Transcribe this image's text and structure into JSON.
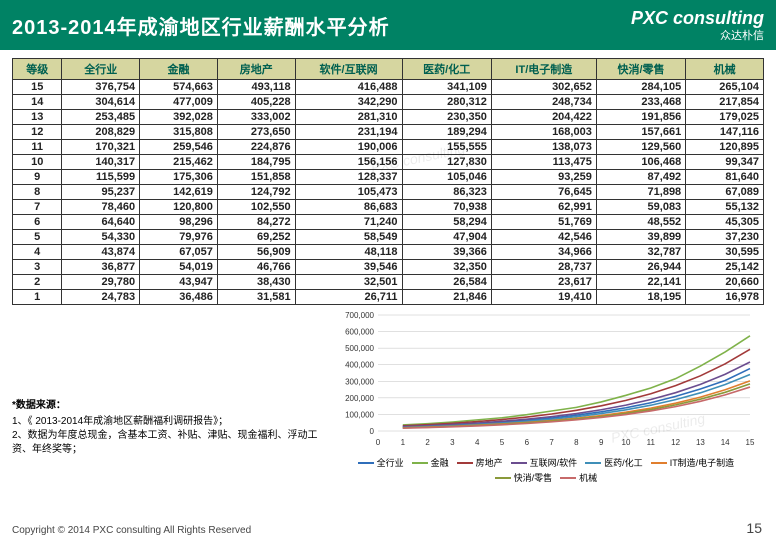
{
  "header": {
    "title": "2013-2014年成渝地区行业薪酬水平分析",
    "logo_main": "PXC consulting",
    "logo_sub": "众达朴信"
  },
  "table": {
    "columns": [
      "等级",
      "全行业",
      "金融",
      "房地产",
      "软件/互联网",
      "医药/化工",
      "IT/电子制造",
      "快消/零售",
      "机械"
    ],
    "rows": [
      [
        "15",
        "376,754",
        "574,663",
        "493,118",
        "416,488",
        "341,109",
        "302,652",
        "284,105",
        "265,104"
      ],
      [
        "14",
        "304,614",
        "477,009",
        "405,228",
        "342,290",
        "280,312",
        "248,734",
        "233,468",
        "217,854"
      ],
      [
        "13",
        "253,485",
        "392,028",
        "333,002",
        "281,310",
        "230,350",
        "204,422",
        "191,856",
        "179,025"
      ],
      [
        "12",
        "208,829",
        "315,808",
        "273,650",
        "231,194",
        "189,294",
        "168,003",
        "157,661",
        "147,116"
      ],
      [
        "11",
        "170,321",
        "259,546",
        "224,876",
        "190,006",
        "155,555",
        "138,073",
        "129,560",
        "120,895"
      ],
      [
        "10",
        "140,317",
        "215,462",
        "184,795",
        "156,156",
        "127,830",
        "113,475",
        "106,468",
        "99,347"
      ],
      [
        "9",
        "115,599",
        "175,306",
        "151,858",
        "128,337",
        "105,046",
        "93,259",
        "87,492",
        "81,640"
      ],
      [
        "8",
        "95,237",
        "142,619",
        "124,792",
        "105,473",
        "86,323",
        "76,645",
        "71,898",
        "67,089"
      ],
      [
        "7",
        "78,460",
        "120,800",
        "102,550",
        "86,683",
        "70,938",
        "62,991",
        "59,083",
        "55,132"
      ],
      [
        "6",
        "64,640",
        "98,296",
        "84,272",
        "71,240",
        "58,294",
        "51,769",
        "48,552",
        "45,305"
      ],
      [
        "5",
        "54,330",
        "79,976",
        "69,252",
        "58,549",
        "47,904",
        "42,546",
        "39,899",
        "37,230"
      ],
      [
        "4",
        "43,874",
        "67,057",
        "56,909",
        "48,118",
        "39,366",
        "34,966",
        "32,787",
        "30,595"
      ],
      [
        "3",
        "36,877",
        "54,019",
        "46,766",
        "39,546",
        "32,350",
        "28,737",
        "26,944",
        "25,142"
      ],
      [
        "2",
        "29,780",
        "43,947",
        "38,430",
        "32,501",
        "26,584",
        "23,617",
        "22,141",
        "20,660"
      ],
      [
        "1",
        "24,783",
        "36,486",
        "31,581",
        "26,711",
        "21,846",
        "19,410",
        "18,195",
        "16,978"
      ]
    ]
  },
  "chart": {
    "type": "line",
    "ylim": [
      0,
      700000
    ],
    "ytick_step": 100000,
    "x_categories": [
      "0",
      "1",
      "2",
      "3",
      "4",
      "5",
      "6",
      "7",
      "8",
      "9",
      "10",
      "11",
      "12",
      "13",
      "14",
      "15"
    ],
    "grid_color": "#c0c0c0",
    "background_color": "#ffffff",
    "series": [
      {
        "name": "全行业",
        "color": "#2f6eba",
        "values": [
          24783,
          29780,
          36877,
          43874,
          54330,
          64640,
          78460,
          95237,
          115599,
          140317,
          170321,
          208829,
          253485,
          304614,
          376754
        ]
      },
      {
        "name": "金融",
        "color": "#7fb24a",
        "values": [
          36486,
          43947,
          54019,
          67057,
          79976,
          98296,
          120800,
          142619,
          175306,
          215462,
          259546,
          315808,
          392028,
          477009,
          574663
        ]
      },
      {
        "name": "房地产",
        "color": "#a23a3a",
        "values": [
          31581,
          38430,
          46766,
          56909,
          69252,
          84272,
          102550,
          124792,
          151858,
          184795,
          224876,
          273650,
          333002,
          405228,
          493118
        ]
      },
      {
        "name": "互联网/软件",
        "color": "#6b4d8f",
        "values": [
          26711,
          32501,
          39546,
          48118,
          58549,
          71240,
          86683,
          105473,
          128337,
          156156,
          190006,
          231194,
          281310,
          342290,
          416488
        ]
      },
      {
        "name": "医药/化工",
        "color": "#3f8fb8",
        "values": [
          21846,
          26584,
          32350,
          39366,
          47904,
          58294,
          70938,
          86323,
          105046,
          127830,
          155555,
          189294,
          230350,
          280312,
          341109
        ]
      },
      {
        "name": "IT制造/电子制造",
        "color": "#e07e2e",
        "values": [
          19410,
          23617,
          28737,
          34966,
          42546,
          51769,
          62991,
          76645,
          93259,
          113475,
          138073,
          168003,
          204422,
          248734,
          302652
        ]
      },
      {
        "name": "快消/零售",
        "color": "#8a9a3a",
        "values": [
          18195,
          22141,
          26944,
          32787,
          39899,
          48552,
          59083,
          71898,
          87492,
          106468,
          129560,
          157661,
          191856,
          233468,
          284105
        ]
      },
      {
        "name": "机械",
        "color": "#c76a6a",
        "values": [
          16978,
          20660,
          25142,
          30595,
          37230,
          45305,
          55132,
          67089,
          81640,
          99347,
          120895,
          147116,
          179025,
          217854,
          265104
        ]
      }
    ]
  },
  "footnotes": {
    "heading": "*数据来源：",
    "lines": [
      "1、《 2013-2014年成渝地区薪酬福利调研报告》；",
      "2、数据为年度总现金，含基本工资、补贴、津贴、现金福利、浮动工资、年终奖等；"
    ]
  },
  "copyright": "Copyright © 2014 PXC consulting All Rights Reserved",
  "page_number": "15"
}
